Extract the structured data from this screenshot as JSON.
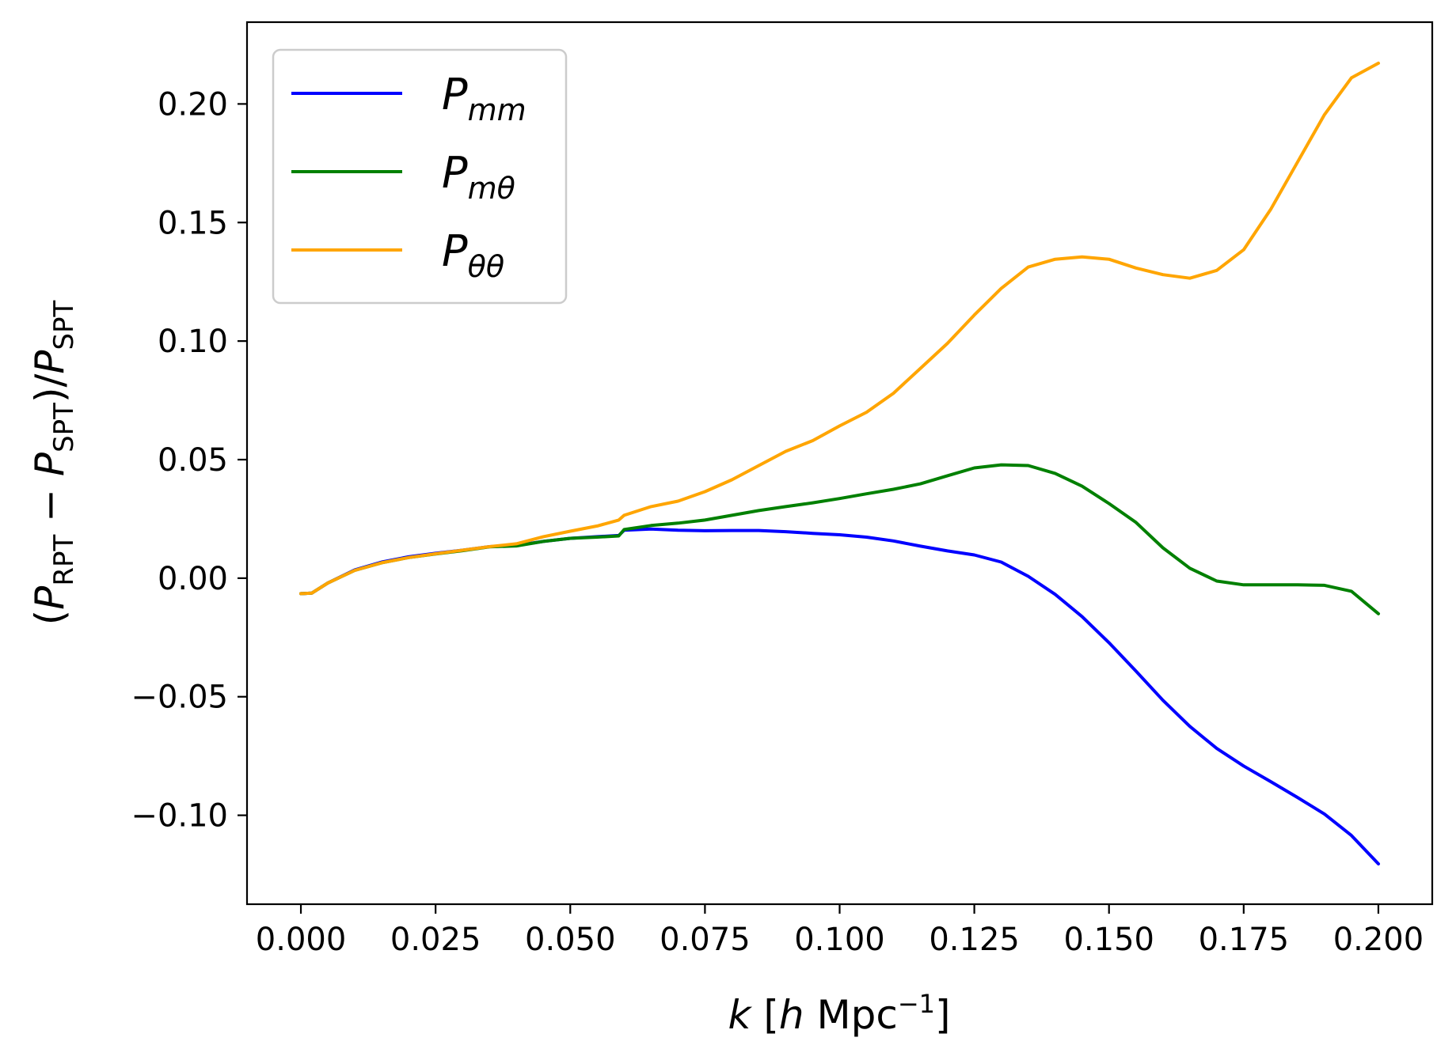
{
  "chart_data": {
    "type": "line",
    "title": "",
    "xlabel": {
      "var": "k",
      "open": " [",
      "unit_var": "h",
      "unit": " Mpc",
      "exp": "−1",
      "close": "]"
    },
    "ylabel": {
      "open": "(",
      "p1": "P",
      "s1": "RPT",
      "minus": " − ",
      "p2": "P",
      "s2": "SPT",
      "close": ")/",
      "p3": "P",
      "s3": "SPT"
    },
    "xlim": [
      -0.01,
      0.21
    ],
    "ylim": [
      -0.1375,
      0.2345
    ],
    "xticks": [
      0.0,
      0.025,
      0.05,
      0.075,
      0.1,
      0.125,
      0.15,
      0.175,
      0.2
    ],
    "xtick_labels": [
      "0.000",
      "0.025",
      "0.050",
      "0.075",
      "0.100",
      "0.125",
      "0.150",
      "0.175",
      "0.200"
    ],
    "yticks": [
      -0.1,
      -0.05,
      0.0,
      0.05,
      0.1,
      0.15,
      0.2
    ],
    "ytick_labels": [
      "−0.10",
      "−0.05",
      "0.00",
      "0.05",
      "0.10",
      "0.15",
      "0.20"
    ],
    "grid": false,
    "legend_position": "upper-left",
    "series": [
      {
        "name": "P_mm",
        "label_main": "P",
        "label_sub": "mm",
        "color": "#0000ff",
        "x": [
          0.0,
          0.002,
          0.005,
          0.01,
          0.015,
          0.02,
          0.025,
          0.03,
          0.035,
          0.04,
          0.045,
          0.05,
          0.055,
          0.059,
          0.06,
          0.065,
          0.07,
          0.075,
          0.08,
          0.085,
          0.09,
          0.095,
          0.1,
          0.105,
          0.11,
          0.115,
          0.12,
          0.125,
          0.13,
          0.135,
          0.14,
          0.145,
          0.15,
          0.155,
          0.16,
          0.165,
          0.17,
          0.175,
          0.18,
          0.185,
          0.19,
          0.195,
          0.2
        ],
        "y": [
          -0.0065,
          -0.0063,
          -0.002,
          0.0035,
          0.0068,
          0.009,
          0.0105,
          0.0118,
          0.0133,
          0.0138,
          0.0155,
          0.0168,
          0.0175,
          0.018,
          0.0202,
          0.0207,
          0.0202,
          0.02,
          0.0201,
          0.0201,
          0.0196,
          0.0189,
          0.0183,
          0.0173,
          0.0157,
          0.0135,
          0.0115,
          0.0098,
          0.0068,
          0.0008,
          -0.0068,
          -0.0162,
          -0.0272,
          -0.0392,
          -0.0515,
          -0.0625,
          -0.0718,
          -0.0792,
          -0.0858,
          -0.0925,
          -0.0995,
          -0.1085,
          -0.1205
        ]
      },
      {
        "name": "P_mθ",
        "label_main": "P",
        "label_sub": "mθ",
        "color": "#008000",
        "x": [
          0.0,
          0.002,
          0.005,
          0.01,
          0.015,
          0.02,
          0.025,
          0.03,
          0.035,
          0.04,
          0.045,
          0.05,
          0.055,
          0.059,
          0.06,
          0.065,
          0.07,
          0.075,
          0.08,
          0.085,
          0.09,
          0.095,
          0.1,
          0.105,
          0.11,
          0.115,
          0.12,
          0.125,
          0.13,
          0.135,
          0.14,
          0.145,
          0.15,
          0.155,
          0.16,
          0.165,
          0.17,
          0.175,
          0.18,
          0.185,
          0.19,
          0.195,
          0.2
        ],
        "y": [
          -0.0065,
          -0.0063,
          -0.002,
          0.0033,
          0.0065,
          0.0087,
          0.0102,
          0.0116,
          0.0132,
          0.0136,
          0.0155,
          0.0168,
          0.0173,
          0.0178,
          0.0205,
          0.0222,
          0.0232,
          0.0245,
          0.0265,
          0.0285,
          0.0302,
          0.0318,
          0.0336,
          0.0356,
          0.0375,
          0.0398,
          0.0432,
          0.0465,
          0.0478,
          0.0475,
          0.0442,
          0.0388,
          0.0315,
          0.0235,
          0.0128,
          0.0042,
          -0.0012,
          -0.0028,
          -0.0028,
          -0.0028,
          -0.003,
          -0.0055,
          -0.015
        ]
      },
      {
        "name": "P_θθ",
        "label_main": "P",
        "label_sub": "θθ",
        "color": "#ffa500",
        "x": [
          0.0,
          0.002,
          0.005,
          0.01,
          0.015,
          0.02,
          0.025,
          0.03,
          0.035,
          0.04,
          0.045,
          0.05,
          0.055,
          0.059,
          0.06,
          0.065,
          0.07,
          0.075,
          0.08,
          0.085,
          0.09,
          0.095,
          0.1,
          0.105,
          0.11,
          0.115,
          0.12,
          0.125,
          0.13,
          0.135,
          0.14,
          0.145,
          0.15,
          0.155,
          0.16,
          0.165,
          0.17,
          0.175,
          0.18,
          0.185,
          0.19,
          0.195,
          0.2
        ],
        "y": [
          -0.0065,
          -0.0063,
          -0.002,
          0.0033,
          0.0065,
          0.0087,
          0.0103,
          0.0118,
          0.0133,
          0.0145,
          0.0175,
          0.0198,
          0.022,
          0.0245,
          0.0265,
          0.0302,
          0.0325,
          0.0365,
          0.0415,
          0.0475,
          0.0535,
          0.058,
          0.0642,
          0.07,
          0.078,
          0.0885,
          0.099,
          0.111,
          0.1222,
          0.1312,
          0.1345,
          0.1355,
          0.1345,
          0.1308,
          0.128,
          0.1265,
          0.1298,
          0.1385,
          0.1555,
          0.1755,
          0.1955,
          0.211,
          0.2172
        ]
      }
    ]
  }
}
